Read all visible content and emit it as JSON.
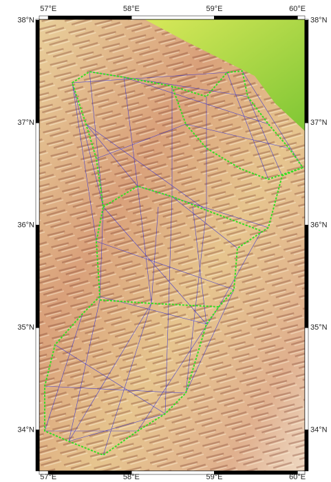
{
  "map": {
    "xlim": [
      56.89,
      60.09
    ],
    "ylim": [
      33.6,
      38.01
    ],
    "xticks": [
      {
        "value": 57,
        "label": "57°E"
      },
      {
        "value": 58,
        "label": "58°E"
      },
      {
        "value": 59,
        "label": "59°E"
      },
      {
        "value": 60,
        "label": "60°E"
      }
    ],
    "yticks": [
      {
        "value": 38,
        "label": "38°N"
      },
      {
        "value": 37,
        "label": "37°N"
      },
      {
        "value": 36,
        "label": "36°N"
      },
      {
        "value": 35,
        "label": "35°N"
      },
      {
        "value": 34,
        "label": "34°N"
      }
    ]
  }
}
